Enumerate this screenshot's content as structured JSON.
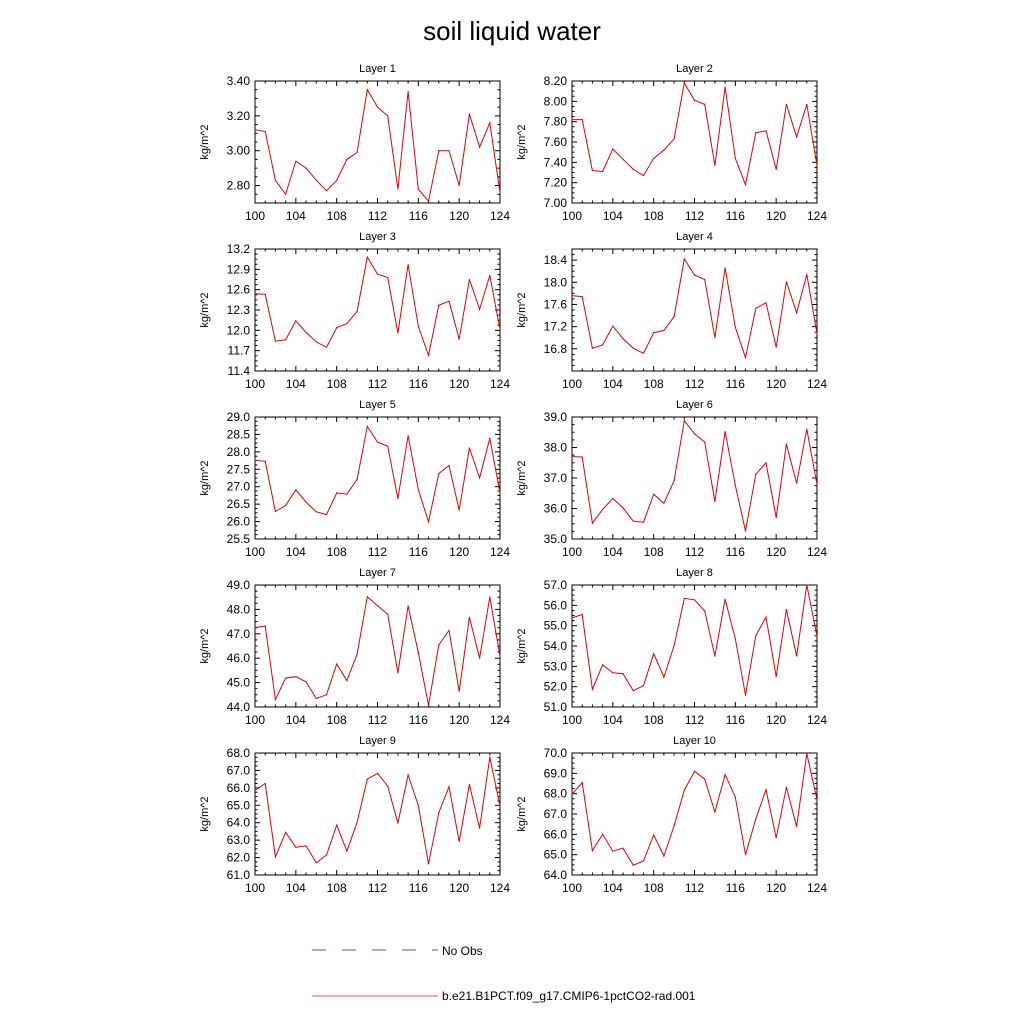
{
  "title": "soil liquid water",
  "legend": {
    "entries": [
      {
        "label": "No Obs",
        "color": "#5a5aa8",
        "style": "dashed"
      },
      {
        "label": "b.e21.B1PCT.f09_g17.CMIP6-1pctCO2-rad.001",
        "color": "#e85050",
        "style": "solid"
      }
    ]
  },
  "colors": {
    "series": "#e00000",
    "axis": "#000000"
  },
  "chart_data": [
    {
      "type": "line",
      "title": "Layer 1",
      "ylabel": "kg/m^2",
      "xlim": [
        100,
        124
      ],
      "ylim": [
        2.7,
        3.4
      ],
      "xticks": [
        100,
        104,
        108,
        112,
        116,
        120,
        124
      ],
      "yticks": [
        2.8,
        3.0,
        3.2,
        3.4
      ],
      "ytick_labels": [
        "2.80",
        "3.00",
        "3.20",
        "3.40"
      ],
      "x": [
        100,
        101,
        102,
        103,
        104,
        105,
        106,
        107,
        108,
        109,
        110,
        111,
        112,
        113,
        114,
        115,
        116,
        117,
        118,
        119,
        120,
        121,
        122,
        123,
        124
      ],
      "values": [
        3.12,
        3.11,
        2.83,
        2.75,
        2.94,
        2.9,
        2.83,
        2.77,
        2.83,
        2.95,
        2.99,
        3.35,
        3.25,
        3.2,
        2.78,
        3.34,
        2.78,
        2.71,
        3.0,
        3.0,
        2.8,
        3.21,
        3.02,
        3.16,
        2.76
      ]
    },
    {
      "type": "line",
      "title": "Layer 2",
      "ylabel": "kg/m^2",
      "xlim": [
        100,
        124
      ],
      "ylim": [
        7.0,
        8.2
      ],
      "xticks": [
        100,
        104,
        108,
        112,
        116,
        120,
        124
      ],
      "yticks": [
        7.0,
        7.2,
        7.4,
        7.6,
        7.8,
        8.0,
        8.2
      ],
      "ytick_labels": [
        "7.00",
        "7.20",
        "7.40",
        "7.60",
        "7.80",
        "8.00",
        "8.20"
      ],
      "x": [
        100,
        101,
        102,
        103,
        104,
        105,
        106,
        107,
        108,
        109,
        110,
        111,
        112,
        113,
        114,
        115,
        116,
        117,
        118,
        119,
        120,
        121,
        122,
        123,
        124
      ],
      "values": [
        7.82,
        7.82,
        7.32,
        7.31,
        7.53,
        7.43,
        7.33,
        7.27,
        7.44,
        7.52,
        7.63,
        8.18,
        8.01,
        7.97,
        7.37,
        8.14,
        7.44,
        7.18,
        7.69,
        7.71,
        7.33,
        7.97,
        7.65,
        7.97,
        7.37
      ]
    },
    {
      "type": "line",
      "title": "Layer 3",
      "ylabel": "kg/m^2",
      "xlim": [
        100,
        124
      ],
      "ylim": [
        11.4,
        13.2
      ],
      "xticks": [
        100,
        104,
        108,
        112,
        116,
        120,
        124
      ],
      "yticks": [
        11.4,
        11.7,
        12.0,
        12.3,
        12.6,
        12.9,
        13.2
      ],
      "ytick_labels": [
        "11.4",
        "11.7",
        "12.0",
        "12.3",
        "12.6",
        "12.9",
        "13.2"
      ],
      "x": [
        100,
        101,
        102,
        103,
        104,
        105,
        106,
        107,
        108,
        109,
        110,
        111,
        112,
        113,
        114,
        115,
        116,
        117,
        118,
        119,
        120,
        121,
        122,
        123,
        124
      ],
      "values": [
        12.54,
        12.53,
        11.84,
        11.86,
        12.14,
        11.97,
        11.83,
        11.75,
        12.04,
        12.1,
        12.28,
        13.08,
        12.83,
        12.78,
        11.96,
        12.97,
        12.06,
        11.63,
        12.37,
        12.43,
        11.87,
        12.75,
        12.31,
        12.81,
        12.01
      ]
    },
    {
      "type": "line",
      "title": "Layer 4",
      "ylabel": "kg/m^2",
      "xlim": [
        100,
        124
      ],
      "ylim": [
        16.4,
        18.6
      ],
      "xticks": [
        100,
        104,
        108,
        112,
        116,
        120,
        124
      ],
      "yticks": [
        16.8,
        17.2,
        17.6,
        18.0,
        18.4
      ],
      "ytick_labels": [
        "16.8",
        "17.2",
        "17.6",
        "18.0",
        "18.4"
      ],
      "x": [
        100,
        101,
        102,
        103,
        104,
        105,
        106,
        107,
        108,
        109,
        110,
        111,
        112,
        113,
        114,
        115,
        116,
        117,
        118,
        119,
        120,
        121,
        122,
        123,
        124
      ],
      "values": [
        17.76,
        17.74,
        16.81,
        16.87,
        17.21,
        16.98,
        16.81,
        16.72,
        17.09,
        17.13,
        17.38,
        18.42,
        18.13,
        18.05,
        17.0,
        18.26,
        17.19,
        16.64,
        17.53,
        17.63,
        16.83,
        18.01,
        17.45,
        18.14,
        17.07
      ]
    },
    {
      "type": "line",
      "title": "Layer 5",
      "ylabel": "kg/m^2",
      "xlim": [
        100,
        124
      ],
      "ylim": [
        25.5,
        29.0
      ],
      "xticks": [
        100,
        104,
        108,
        112,
        116,
        120,
        124
      ],
      "yticks": [
        25.5,
        26.0,
        26.5,
        27.0,
        27.5,
        28.0,
        28.5,
        29.0
      ],
      "ytick_labels": [
        "25.5",
        "26.0",
        "26.5",
        "27.0",
        "27.5",
        "28.0",
        "28.5",
        "29.0"
      ],
      "x": [
        100,
        101,
        102,
        103,
        104,
        105,
        106,
        107,
        108,
        109,
        110,
        111,
        112,
        113,
        114,
        115,
        116,
        117,
        118,
        119,
        120,
        121,
        122,
        123,
        124
      ],
      "values": [
        27.76,
        27.73,
        26.29,
        26.46,
        26.91,
        26.56,
        26.28,
        26.2,
        26.82,
        26.79,
        27.21,
        28.73,
        28.28,
        28.16,
        26.66,
        28.46,
        26.92,
        25.99,
        27.38,
        27.61,
        26.33,
        28.11,
        27.25,
        28.39,
        26.82
      ]
    },
    {
      "type": "line",
      "title": "Layer 6",
      "ylabel": "kg/m^2",
      "xlim": [
        100,
        124
      ],
      "ylim": [
        35.0,
        39.0
      ],
      "xticks": [
        100,
        104,
        108,
        112,
        116,
        120,
        124
      ],
      "yticks": [
        35.0,
        36.0,
        37.0,
        38.0,
        39.0
      ],
      "ytick_labels": [
        "35.0",
        "36.0",
        "37.0",
        "38.0",
        "39.0"
      ],
      "x": [
        100,
        101,
        102,
        103,
        104,
        105,
        106,
        107,
        108,
        109,
        110,
        111,
        112,
        113,
        114,
        115,
        116,
        117,
        118,
        119,
        120,
        121,
        122,
        123,
        124
      ],
      "values": [
        37.7,
        37.69,
        35.52,
        35.97,
        36.33,
        36.02,
        35.58,
        35.55,
        36.47,
        36.17,
        36.91,
        38.88,
        38.45,
        38.18,
        36.23,
        38.52,
        36.76,
        35.26,
        37.12,
        37.5,
        35.7,
        38.11,
        36.83,
        38.6,
        36.78
      ]
    },
    {
      "type": "line",
      "title": "Layer 7",
      "ylabel": "kg/m^2",
      "xlim": [
        100,
        124
      ],
      "ylim": [
        44.0,
        49.0
      ],
      "xticks": [
        100,
        104,
        108,
        112,
        116,
        120,
        124
      ],
      "yticks": [
        44.0,
        45.0,
        46.0,
        47.0,
        48.0,
        49.0
      ],
      "ytick_labels": [
        "44.0",
        "45.0",
        "46.0",
        "47.0",
        "48.0",
        "49.0"
      ],
      "x": [
        100,
        101,
        102,
        103,
        104,
        105,
        106,
        107,
        108,
        109,
        110,
        111,
        112,
        113,
        114,
        115,
        116,
        117,
        118,
        119,
        120,
        121,
        122,
        123,
        124
      ],
      "values": [
        47.26,
        47.31,
        44.3,
        45.19,
        45.24,
        45.03,
        44.35,
        44.5,
        45.76,
        45.08,
        46.17,
        48.52,
        48.15,
        47.8,
        45.4,
        48.14,
        46.23,
        44.07,
        46.54,
        47.14,
        44.64,
        47.68,
        46.0,
        48.51,
        46.08
      ]
    },
    {
      "type": "line",
      "title": "Layer 8",
      "ylabel": "kg/m^2",
      "xlim": [
        100,
        124
      ],
      "ylim": [
        51.0,
        57.0
      ],
      "xticks": [
        100,
        104,
        108,
        112,
        116,
        120,
        124
      ],
      "yticks": [
        51.0,
        52.0,
        53.0,
        54.0,
        55.0,
        56.0,
        57.0
      ],
      "ytick_labels": [
        "51.0",
        "52.0",
        "53.0",
        "54.0",
        "55.0",
        "56.0",
        "57.0"
      ],
      "x": [
        100,
        101,
        102,
        103,
        104,
        105,
        106,
        107,
        108,
        109,
        110,
        111,
        112,
        113,
        114,
        115,
        116,
        117,
        118,
        119,
        120,
        121,
        122,
        123,
        124
      ],
      "values": [
        55.38,
        55.55,
        51.87,
        53.07,
        52.68,
        52.64,
        51.8,
        52.05,
        53.62,
        52.47,
        54.02,
        56.34,
        56.27,
        55.72,
        53.5,
        56.3,
        54.36,
        51.58,
        54.51,
        55.42,
        52.49,
        55.79,
        53.51,
        57.0,
        54.47
      ]
    },
    {
      "type": "line",
      "title": "Layer 9",
      "ylabel": "kg/m^2",
      "xlim": [
        100,
        124
      ],
      "ylim": [
        61.0,
        68.0
      ],
      "xticks": [
        100,
        104,
        108,
        112,
        116,
        120,
        124
      ],
      "yticks": [
        61.0,
        62.0,
        63.0,
        64.0,
        65.0,
        66.0,
        67.0,
        68.0
      ],
      "ytick_labels": [
        "61.0",
        "62.0",
        "63.0",
        "64.0",
        "65.0",
        "66.0",
        "67.0",
        "68.0"
      ],
      "x": [
        100,
        101,
        102,
        103,
        104,
        105,
        106,
        107,
        108,
        109,
        110,
        111,
        112,
        113,
        114,
        115,
        116,
        117,
        118,
        119,
        120,
        121,
        122,
        123,
        124
      ],
      "values": [
        65.85,
        66.25,
        62.04,
        63.45,
        62.59,
        62.67,
        61.7,
        62.15,
        63.86,
        62.37,
        64.02,
        66.5,
        66.83,
        66.1,
        63.98,
        66.74,
        64.99,
        61.64,
        64.58,
        66.06,
        62.92,
        66.19,
        63.68,
        67.76,
        64.96
      ]
    },
    {
      "type": "line",
      "title": "Layer 10",
      "ylabel": "kg/m^2",
      "xlim": [
        100,
        124
      ],
      "ylim": [
        64.0,
        70.0
      ],
      "xticks": [
        100,
        104,
        108,
        112,
        116,
        120,
        124
      ],
      "yticks": [
        64.0,
        65.0,
        66.0,
        67.0,
        68.0,
        69.0,
        70.0
      ],
      "ytick_labels": [
        "64.0",
        "65.0",
        "66.0",
        "67.0",
        "68.0",
        "69.0",
        "70.0"
      ],
      "x": [
        100,
        101,
        102,
        103,
        104,
        105,
        106,
        107,
        108,
        109,
        110,
        111,
        112,
        113,
        114,
        115,
        116,
        117,
        118,
        119,
        120,
        121,
        122,
        123,
        124
      ],
      "values": [
        67.97,
        68.55,
        65.2,
        66.0,
        65.17,
        65.32,
        64.48,
        64.69,
        65.97,
        64.93,
        66.42,
        68.17,
        69.1,
        68.71,
        67.1,
        68.94,
        67.83,
        65.0,
        66.76,
        68.2,
        65.83,
        68.32,
        66.38,
        69.97,
        67.7
      ]
    }
  ]
}
